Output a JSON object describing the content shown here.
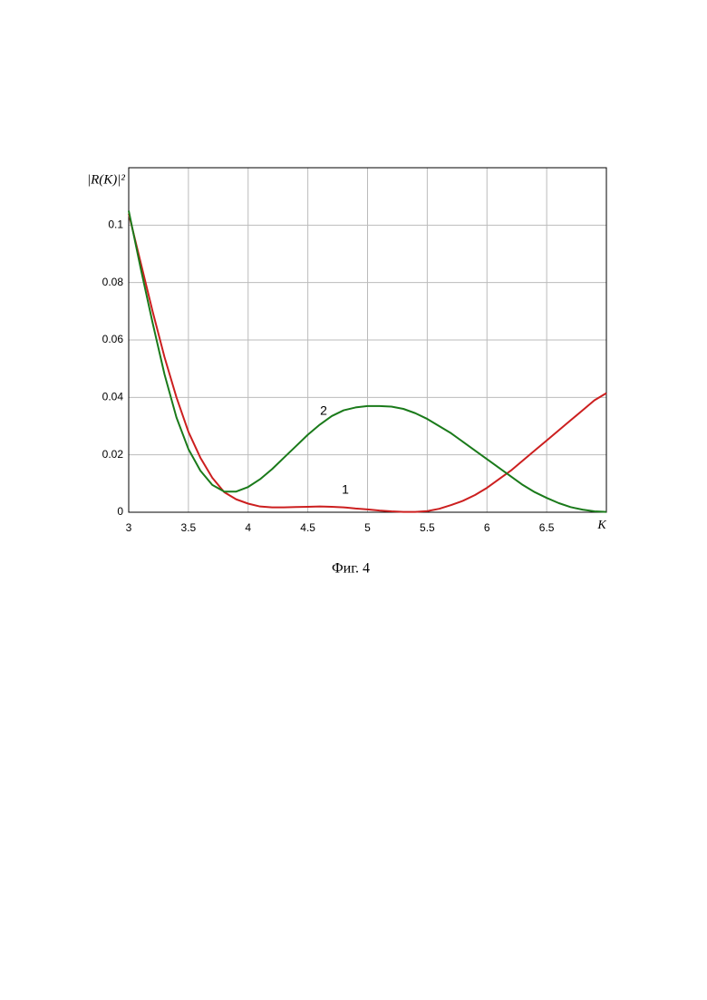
{
  "chart_data": {
    "type": "line",
    "y_label": "|R(K)|²",
    "x_label": "K",
    "caption": "Фиг. 4",
    "x": [
      3,
      3.1,
      3.2,
      3.3,
      3.4,
      3.5,
      3.6,
      3.7,
      3.8,
      3.9,
      4,
      4.1,
      4.2,
      4.3,
      4.4,
      4.5,
      4.6,
      4.7,
      4.8,
      4.9,
      5,
      5.1,
      5.2,
      5.3,
      5.4,
      5.5,
      5.6,
      5.7,
      5.8,
      5.9,
      6,
      6.1,
      6.2,
      6.3,
      6.4,
      6.5,
      6.6,
      6.7,
      6.8,
      6.9,
      7
    ],
    "series": [
      {
        "name": "1",
        "color": "#cc1f1f",
        "values": [
          0.104,
          0.087,
          0.07,
          0.054,
          0.04,
          0.028,
          0.019,
          0.012,
          0.007,
          0.0045,
          0.003,
          0.002,
          0.0017,
          0.0017,
          0.0018,
          0.0019,
          0.002,
          0.0019,
          0.0017,
          0.0013,
          0.001,
          0.0006,
          0.0003,
          0.0001,
          0.0001,
          0.0004,
          0.0012,
          0.0025,
          0.004,
          0.006,
          0.0085,
          0.0115,
          0.0145,
          0.018,
          0.0215,
          0.025,
          0.0285,
          0.032,
          0.0355,
          0.039,
          0.0415
        ]
      },
      {
        "name": "2",
        "color": "#1a7a1a",
        "values": [
          0.105,
          0.085,
          0.066,
          0.048,
          0.033,
          0.022,
          0.0145,
          0.0095,
          0.0072,
          0.0072,
          0.0088,
          0.0115,
          0.015,
          0.019,
          0.023,
          0.027,
          0.0305,
          0.0335,
          0.0355,
          0.0365,
          0.037,
          0.037,
          0.0368,
          0.036,
          0.0345,
          0.0325,
          0.03,
          0.0275,
          0.0245,
          0.0215,
          0.0185,
          0.0155,
          0.0125,
          0.0095,
          0.007,
          0.005,
          0.0032,
          0.0018,
          0.0009,
          0.0003,
          0.0001
        ]
      }
    ],
    "xlim": [
      3,
      7
    ],
    "xticks": [
      3,
      3.5,
      4,
      4.5,
      5,
      5.5,
      6,
      6.5
    ],
    "ylim": [
      0,
      0.12
    ],
    "yticks": [
      0,
      0.02,
      0.04,
      0.06,
      0.08,
      0.1
    ],
    "grid": true
  }
}
